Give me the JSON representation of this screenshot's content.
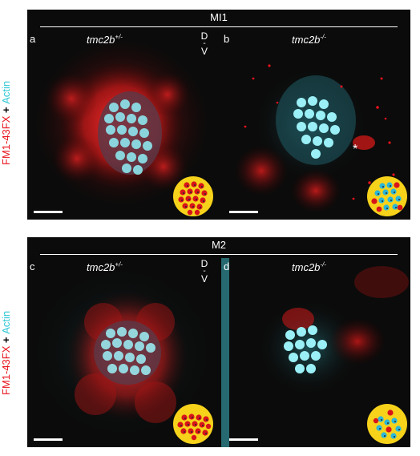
{
  "figure": {
    "side_label": {
      "dye": "FM1-43FX",
      "plus": "+",
      "stain": "Actin"
    },
    "rows": [
      {
        "title": "MI1",
        "panels": [
          {
            "letter": "a",
            "genotype_base": "tmc2b",
            "genotype_sup": "+/-",
            "axis": [
              "D",
              "V"
            ]
          },
          {
            "letter": "b",
            "genotype_base": "tmc2b",
            "genotype_sup": "-/-",
            "marker": "*"
          }
        ]
      },
      {
        "title": "M2",
        "panels": [
          {
            "letter": "c",
            "genotype_base": "tmc2b",
            "genotype_sup": "+/-",
            "axis": [
              "D",
              "V"
            ]
          },
          {
            "letter": "d",
            "genotype_base": "tmc2b",
            "genotype_sup": "-/-"
          }
        ]
      }
    ]
  },
  "colors": {
    "fm_dye": "#e8121b",
    "actin": "#2ec7d6",
    "background": "#0b0b0b",
    "inset_disc": "#f6d21b",
    "inset_dot_red": "#d8141a",
    "inset_dot_blue": "#2ab6d8"
  }
}
